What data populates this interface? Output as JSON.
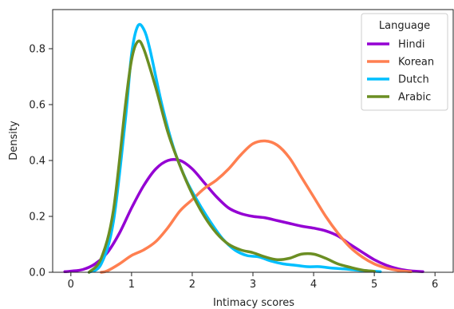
{
  "chart_data": {
    "type": "line",
    "title": "",
    "xlabel": "Intimacy scores",
    "ylabel": "Density",
    "xlim": [
      -0.3,
      6.3
    ],
    "ylim": [
      0.0,
      0.94
    ],
    "xticks": [
      0,
      1,
      2,
      3,
      4,
      5,
      6
    ],
    "yticks": [
      0.0,
      0.2,
      0.4,
      0.6,
      0.8
    ],
    "ytick_labels": [
      "0.0",
      "0.2",
      "0.4",
      "0.6",
      "0.8"
    ],
    "grid": false,
    "legend": {
      "title": "Language",
      "placement": "top-right"
    },
    "series": [
      {
        "name": "Hindi",
        "color": "#9400D3",
        "points": [
          [
            -0.1,
            0.002
          ],
          [
            0.0,
            0.004
          ],
          [
            0.2,
            0.01
          ],
          [
            0.4,
            0.03
          ],
          [
            0.6,
            0.07
          ],
          [
            0.8,
            0.14
          ],
          [
            1.0,
            0.23
          ],
          [
            1.2,
            0.31
          ],
          [
            1.4,
            0.37
          ],
          [
            1.6,
            0.4
          ],
          [
            1.8,
            0.4
          ],
          [
            2.0,
            0.37
          ],
          [
            2.2,
            0.32
          ],
          [
            2.4,
            0.27
          ],
          [
            2.6,
            0.23
          ],
          [
            2.8,
            0.21
          ],
          [
            3.0,
            0.2
          ],
          [
            3.2,
            0.195
          ],
          [
            3.4,
            0.185
          ],
          [
            3.6,
            0.175
          ],
          [
            3.8,
            0.165
          ],
          [
            4.0,
            0.158
          ],
          [
            4.2,
            0.148
          ],
          [
            4.4,
            0.13
          ],
          [
            4.6,
            0.1
          ],
          [
            4.8,
            0.072
          ],
          [
            5.0,
            0.045
          ],
          [
            5.2,
            0.025
          ],
          [
            5.4,
            0.012
          ],
          [
            5.6,
            0.005
          ],
          [
            5.8,
            0.002
          ]
        ]
      },
      {
        "name": "Korean",
        "color": "#FF7F50",
        "points": [
          [
            0.5,
            0.0
          ],
          [
            0.6,
            0.005
          ],
          [
            0.8,
            0.03
          ],
          [
            1.0,
            0.06
          ],
          [
            1.2,
            0.08
          ],
          [
            1.4,
            0.11
          ],
          [
            1.6,
            0.16
          ],
          [
            1.8,
            0.22
          ],
          [
            2.0,
            0.26
          ],
          [
            2.2,
            0.3
          ],
          [
            2.4,
            0.33
          ],
          [
            2.6,
            0.37
          ],
          [
            2.8,
            0.42
          ],
          [
            3.0,
            0.46
          ],
          [
            3.2,
            0.47
          ],
          [
            3.4,
            0.455
          ],
          [
            3.6,
            0.41
          ],
          [
            3.8,
            0.34
          ],
          [
            4.0,
            0.27
          ],
          [
            4.2,
            0.2
          ],
          [
            4.4,
            0.14
          ],
          [
            4.6,
            0.09
          ],
          [
            4.8,
            0.055
          ],
          [
            5.0,
            0.03
          ],
          [
            5.2,
            0.015
          ],
          [
            5.4,
            0.006
          ],
          [
            5.6,
            0.002
          ]
        ]
      },
      {
        "name": "Dutch",
        "color": "#00BFFF",
        "points": [
          [
            0.3,
            0.0
          ],
          [
            0.5,
            0.03
          ],
          [
            0.7,
            0.18
          ],
          [
            0.9,
            0.55
          ],
          [
            1.0,
            0.78
          ],
          [
            1.1,
            0.88
          ],
          [
            1.2,
            0.87
          ],
          [
            1.3,
            0.8
          ],
          [
            1.5,
            0.6
          ],
          [
            1.7,
            0.44
          ],
          [
            1.9,
            0.33
          ],
          [
            2.1,
            0.25
          ],
          [
            2.3,
            0.18
          ],
          [
            2.5,
            0.12
          ],
          [
            2.7,
            0.08
          ],
          [
            2.9,
            0.06
          ],
          [
            3.1,
            0.055
          ],
          [
            3.3,
            0.04
          ],
          [
            3.5,
            0.03
          ],
          [
            3.7,
            0.025
          ],
          [
            3.9,
            0.02
          ],
          [
            4.1,
            0.02
          ],
          [
            4.3,
            0.015
          ],
          [
            4.5,
            0.012
          ],
          [
            4.7,
            0.008
          ],
          [
            4.9,
            0.005
          ],
          [
            5.1,
            0.002
          ]
        ]
      },
      {
        "name": "Arabic",
        "color": "#6B8E23",
        "points": [
          [
            0.3,
            0.0
          ],
          [
            0.5,
            0.05
          ],
          [
            0.7,
            0.22
          ],
          [
            0.9,
            0.6
          ],
          [
            1.0,
            0.76
          ],
          [
            1.1,
            0.825
          ],
          [
            1.2,
            0.8
          ],
          [
            1.4,
            0.66
          ],
          [
            1.6,
            0.5
          ],
          [
            1.8,
            0.38
          ],
          [
            2.0,
            0.28
          ],
          [
            2.2,
            0.2
          ],
          [
            2.4,
            0.14
          ],
          [
            2.6,
            0.1
          ],
          [
            2.8,
            0.08
          ],
          [
            3.0,
            0.07
          ],
          [
            3.2,
            0.055
          ],
          [
            3.4,
            0.045
          ],
          [
            3.6,
            0.05
          ],
          [
            3.8,
            0.065
          ],
          [
            4.0,
            0.065
          ],
          [
            4.2,
            0.05
          ],
          [
            4.4,
            0.03
          ],
          [
            4.6,
            0.018
          ],
          [
            4.8,
            0.008
          ],
          [
            5.0,
            0.003
          ]
        ]
      }
    ]
  }
}
